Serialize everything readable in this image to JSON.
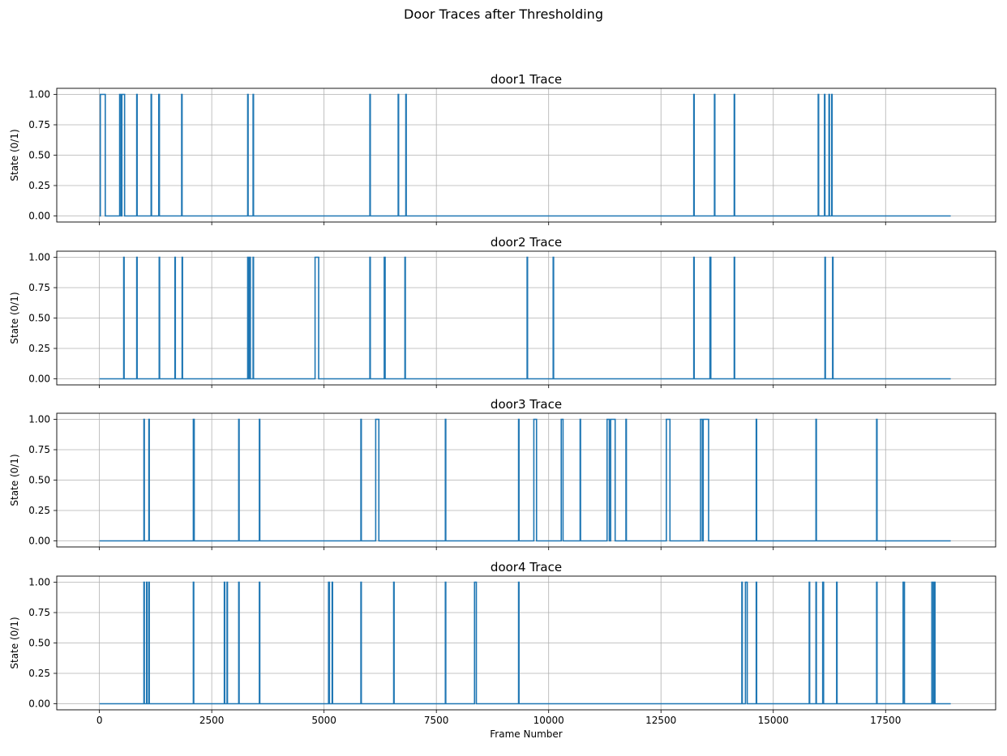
{
  "suptitle": "Door Traces after Thresholding",
  "chart_data": [
    {
      "type": "line",
      "title": "door1 Trace",
      "ylabel": "State (0/1)",
      "xlabel": "",
      "xlim": [
        -950,
        19950
      ],
      "ylim": [
        -0.05,
        1.05
      ],
      "x_ticks": [
        0,
        2500,
        5000,
        7500,
        10000,
        12500,
        15000,
        17500
      ],
      "x_tick_labels": [],
      "y_ticks": [
        0,
        0.25,
        0.5,
        0.75,
        1.0
      ],
      "y_tick_labels": [
        "0.00",
        "0.25",
        "0.50",
        "0.75",
        "1.00"
      ],
      "grid": true,
      "color": "#1f77b4",
      "x_range": [
        0,
        18950
      ],
      "pulses": [
        [
          20,
          130
        ],
        [
          450,
          480
        ],
        [
          500,
          560
        ],
        [
          830,
          840
        ],
        [
          1150,
          1160
        ],
        [
          1320,
          1335
        ],
        [
          1830,
          1840
        ],
        [
          3300,
          3310
        ],
        [
          3420,
          3430
        ],
        [
          6020,
          6030
        ],
        [
          6650,
          6660
        ],
        [
          6820,
          6830
        ],
        [
          13230,
          13240
        ],
        [
          13690,
          13700
        ],
        [
          14130,
          14140
        ],
        [
          16000,
          16010
        ],
        [
          16140,
          16150
        ],
        [
          16240,
          16250
        ],
        [
          16300,
          16310
        ]
      ]
    },
    {
      "type": "line",
      "title": "door2 Trace",
      "ylabel": "State (0/1)",
      "xlabel": "",
      "xlim": [
        -950,
        19950
      ],
      "ylim": [
        -0.05,
        1.05
      ],
      "x_ticks": [
        0,
        2500,
        5000,
        7500,
        10000,
        12500,
        15000,
        17500
      ],
      "x_tick_labels": [],
      "y_ticks": [
        0,
        0.25,
        0.5,
        0.75,
        1.0
      ],
      "y_tick_labels": [
        "0.00",
        "0.25",
        "0.50",
        "0.75",
        "1.00"
      ],
      "grid": true,
      "color": "#1f77b4",
      "x_range": [
        0,
        18950
      ],
      "pulses": [
        [
          540,
          550
        ],
        [
          830,
          840
        ],
        [
          1330,
          1340
        ],
        [
          1680,
          1690
        ],
        [
          1840,
          1850
        ],
        [
          3300,
          3320
        ],
        [
          3340,
          3360
        ],
        [
          3420,
          3430
        ],
        [
          4800,
          4880
        ],
        [
          6020,
          6030
        ],
        [
          6340,
          6360
        ],
        [
          6800,
          6810
        ],
        [
          9520,
          9530
        ],
        [
          10100,
          10110
        ],
        [
          13230,
          13240
        ],
        [
          13590,
          13610
        ],
        [
          14130,
          14140
        ],
        [
          16150,
          16160
        ],
        [
          16320,
          16330
        ]
      ]
    },
    {
      "type": "line",
      "title": "door3 Trace",
      "ylabel": "State (0/1)",
      "xlabel": "",
      "xlim": [
        -950,
        19950
      ],
      "ylim": [
        -0.05,
        1.05
      ],
      "x_ticks": [
        0,
        2500,
        5000,
        7500,
        10000,
        12500,
        15000,
        17500
      ],
      "x_tick_labels": [],
      "y_ticks": [
        0,
        0.25,
        0.5,
        0.75,
        1.0
      ],
      "y_tick_labels": [
        "0.00",
        "0.25",
        "0.50",
        "0.75",
        "1.00"
      ],
      "grid": true,
      "color": "#1f77b4",
      "x_range": [
        0,
        18950
      ],
      "pulses": [
        [
          990,
          1000
        ],
        [
          1100,
          1110
        ],
        [
          2090,
          2110
        ],
        [
          3100,
          3110
        ],
        [
          3560,
          3570
        ],
        [
          5820,
          5830
        ],
        [
          6150,
          6220
        ],
        [
          7700,
          7710
        ],
        [
          9330,
          9340
        ],
        [
          9670,
          9730
        ],
        [
          10280,
          10320
        ],
        [
          10700,
          10710
        ],
        [
          11300,
          11350
        ],
        [
          11380,
          11480
        ],
        [
          11720,
          11730
        ],
        [
          12620,
          12700
        ],
        [
          13380,
          13420
        ],
        [
          13440,
          13560
        ],
        [
          14620,
          14630
        ],
        [
          15950,
          15960
        ],
        [
          17300,
          17310
        ]
      ]
    },
    {
      "type": "line",
      "title": "door4 Trace",
      "ylabel": "State (0/1)",
      "xlabel": "Frame Number",
      "xlim": [
        -950,
        19950
      ],
      "ylim": [
        -0.05,
        1.05
      ],
      "x_ticks": [
        0,
        2500,
        5000,
        7500,
        10000,
        12500,
        15000,
        17500
      ],
      "x_tick_labels": [
        "0",
        "2500",
        "5000",
        "7500",
        "10000",
        "12500",
        "15000",
        "17500"
      ],
      "y_ticks": [
        0,
        0.25,
        0.5,
        0.75,
        1.0
      ],
      "y_tick_labels": [
        "0.00",
        "0.25",
        "0.50",
        "0.75",
        "1.00"
      ],
      "grid": true,
      "color": "#1f77b4",
      "x_range": [
        0,
        18950
      ],
      "pulses": [
        [
          990,
          1000
        ],
        [
          1050,
          1060
        ],
        [
          1100,
          1110
        ],
        [
          2090,
          2100
        ],
        [
          2780,
          2790
        ],
        [
          2840,
          2850
        ],
        [
          3100,
          3110
        ],
        [
          3560,
          3570
        ],
        [
          5100,
          5120
        ],
        [
          5180,
          5190
        ],
        [
          5820,
          5830
        ],
        [
          6550,
          6560
        ],
        [
          7700,
          7710
        ],
        [
          8350,
          8390
        ],
        [
          9330,
          9340
        ],
        [
          14300,
          14310
        ],
        [
          14380,
          14420
        ],
        [
          14620,
          14630
        ],
        [
          15800,
          15810
        ],
        [
          15950,
          15960
        ],
        [
          16100,
          16120
        ],
        [
          16410,
          16420
        ],
        [
          17300,
          17310
        ],
        [
          17890,
          17920
        ],
        [
          18530,
          18560
        ],
        [
          18580,
          18600
        ]
      ]
    }
  ]
}
